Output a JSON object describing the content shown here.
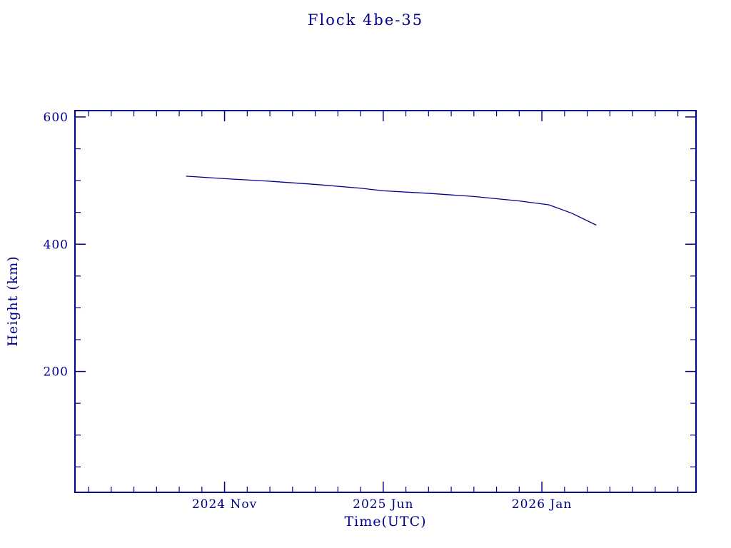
{
  "chart_data": {
    "type": "line",
    "title": "Flock 4be-35",
    "xlabel": "Time(UTC)",
    "ylabel": "Height (km)",
    "color": "#00008B",
    "background": "#ffffff",
    "ylim": [
      10,
      610
    ],
    "y_major_ticks": [
      200,
      400,
      600
    ],
    "y_minor_step": 50,
    "xlim_months_since_2024_jan": [
      3.4,
      30.8
    ],
    "x_major_ticks": [
      {
        "month": 10,
        "label": "2024 Nov"
      },
      {
        "month": 17,
        "label": "2025 Jun"
      },
      {
        "month": 24,
        "label": "2026 Jan"
      }
    ],
    "x_minor_step_months": 1,
    "grid": false,
    "legend": "none",
    "series": [
      {
        "name": "Flock 4be-35 height",
        "points": [
          {
            "t": "2024-09",
            "month": 8.3,
            "height_km": 507
          },
          {
            "t": "2024-11",
            "month": 10.0,
            "height_km": 503
          },
          {
            "t": "2025-01",
            "month": 12.0,
            "height_km": 499
          },
          {
            "t": "2025-03",
            "month": 14.0,
            "height_km": 494
          },
          {
            "t": "2025-05",
            "month": 16.0,
            "height_km": 488
          },
          {
            "t": "2025-06",
            "month": 17.0,
            "height_km": 484
          },
          {
            "t": "2025-08",
            "month": 19.0,
            "height_km": 480
          },
          {
            "t": "2025-10",
            "month": 21.0,
            "height_km": 475
          },
          {
            "t": "2025-12",
            "month": 23.0,
            "height_km": 468
          },
          {
            "t": "2026-01",
            "month": 24.3,
            "height_km": 462
          },
          {
            "t": "2026-02",
            "month": 25.3,
            "height_km": 449
          },
          {
            "t": "2026-03",
            "month": 26.4,
            "height_km": 430
          }
        ]
      }
    ]
  }
}
